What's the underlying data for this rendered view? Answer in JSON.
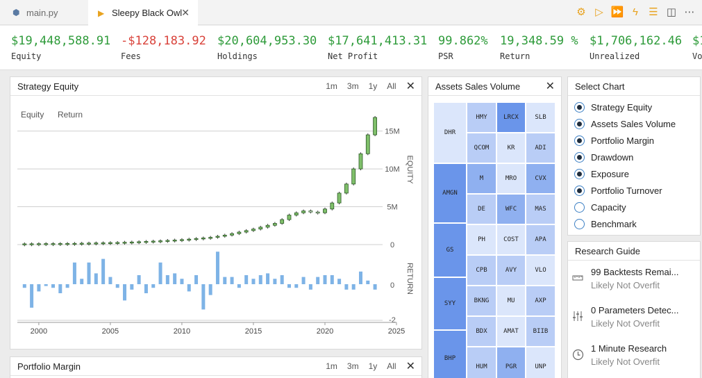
{
  "tabs": [
    {
      "label": "main.py",
      "icon": "python-file-icon"
    },
    {
      "label": "Sleepy Black Owl",
      "icon": "run-triangle-icon"
    }
  ],
  "toolbar": [
    "settings-icon",
    "run-icon",
    "fast-forward-icon",
    "lightning-icon",
    "list-icon",
    "split-view-icon",
    "more-icon"
  ],
  "stats": [
    {
      "value": "$19,448,588.91",
      "label": "Equity",
      "color": "#2e9b3a"
    },
    {
      "value": "-$128,183.92",
      "label": "Fees",
      "color": "#d9423a"
    },
    {
      "value": "$20,604,953.30",
      "label": "Holdings",
      "color": "#2e9b3a"
    },
    {
      "value": "$17,641,413.31",
      "label": "Net Profit",
      "color": "#2e9b3a"
    },
    {
      "value": "99.862%",
      "label": "PSR",
      "color": "#2e9b3a"
    },
    {
      "value": "19,348.59 %",
      "label": "Return",
      "color": "#2e9b3a"
    },
    {
      "value": "$1,706,162.46",
      "label": "Unrealized",
      "color": "#2e9b3a"
    },
    {
      "value": "$1",
      "label": "Vo",
      "color": "#2e9b3a"
    }
  ],
  "equity_panel": {
    "title": "Strategy Equity",
    "ranges": [
      "1m",
      "3m",
      "1y",
      "All"
    ],
    "legend": [
      "Equity",
      "Return"
    ]
  },
  "margin_panel": {
    "title": "Portfolio Margin",
    "ranges": [
      "1m",
      "3m",
      "1y",
      "All"
    ]
  },
  "assets_panel": {
    "title": "Assets Sales Volume"
  },
  "select_panel": {
    "title": "Select Chart",
    "options": [
      {
        "label": "Strategy Equity",
        "checked": true
      },
      {
        "label": "Assets Sales Volume",
        "checked": true
      },
      {
        "label": "Portfolio Margin",
        "checked": true
      },
      {
        "label": "Drawdown",
        "checked": true
      },
      {
        "label": "Exposure",
        "checked": true
      },
      {
        "label": "Portfolio Turnover",
        "checked": true
      },
      {
        "label": "Capacity",
        "checked": false
      },
      {
        "label": "Benchmark",
        "checked": false
      }
    ]
  },
  "guide_panel": {
    "title": "Research Guide",
    "items": [
      {
        "title": "99 Backtests Remai...",
        "sub": "Likely Not Overfit",
        "icon": "ruler-icon"
      },
      {
        "title": "0 Parameters Detec...",
        "sub": "Likely Not Overfit",
        "icon": "sliders-icon"
      },
      {
        "title": "1 Minute Research",
        "sub": "Likely Not Overfit",
        "icon": "clock-icon"
      }
    ]
  },
  "treemap": [
    {
      "label": "DHR",
      "shade": 1
    },
    {
      "label": "HMY",
      "shade": 2
    },
    {
      "label": "LRCX",
      "shade": 4
    },
    {
      "label": "SLB",
      "shade": 1
    },
    {
      "label": "QCOM",
      "shade": 2
    },
    {
      "label": "KR",
      "shade": 1
    },
    {
      "label": "ADI",
      "shade": 2
    },
    {
      "label": "AMGN",
      "shade": 4
    },
    {
      "label": "M",
      "shade": 3
    },
    {
      "label": "MRO",
      "shade": 1
    },
    {
      "label": "CVX",
      "shade": 3
    },
    {
      "label": "DE",
      "shade": 2
    },
    {
      "label": "WFC",
      "shade": 3
    },
    {
      "label": "MAS",
      "shade": 2
    },
    {
      "label": "GS",
      "shade": 4
    },
    {
      "label": "PH",
      "shade": 1
    },
    {
      "label": "COST",
      "shade": 1
    },
    {
      "label": "APA",
      "shade": 2
    },
    {
      "label": "CPB",
      "shade": 2
    },
    {
      "label": "AVY",
      "shade": 2
    },
    {
      "label": "VLO",
      "shade": 1
    },
    {
      "label": "SYY",
      "shade": 4
    },
    {
      "label": "BKNG",
      "shade": 2
    },
    {
      "label": "MU",
      "shade": 1
    },
    {
      "label": "AXP",
      "shade": 2
    },
    {
      "label": "BDX",
      "shade": 2
    },
    {
      "label": "AMAT",
      "shade": 1
    },
    {
      "label": "BIIB",
      "shade": 2
    },
    {
      "label": "BHP",
      "shade": 4
    },
    {
      "label": "HUM",
      "shade": 2
    },
    {
      "label": "PGR",
      "shade": 3
    },
    {
      "label": "UNP",
      "shade": 1
    }
  ],
  "chart_data": {
    "type": "bar",
    "title": "Strategy Equity",
    "x_ticks": [
      "2000",
      "2005",
      "2010",
      "2015",
      "2020",
      "2025"
    ],
    "xlim": [
      1998.5,
      2025
    ],
    "equity": {
      "name": "Equity",
      "ylabel": "EQUITY",
      "ticks": [
        "0",
        "5M",
        "10M",
        "15M"
      ],
      "ylim": [
        0,
        16800000
      ],
      "type": "candlestick",
      "points": [
        [
          1999.0,
          0.1
        ],
        [
          1999.5,
          0.11
        ],
        [
          2000.0,
          0.12
        ],
        [
          2000.5,
          0.13
        ],
        [
          2001.0,
          0.13
        ],
        [
          2001.5,
          0.14
        ],
        [
          2002.0,
          0.15
        ],
        [
          2002.5,
          0.16
        ],
        [
          2003.0,
          0.18
        ],
        [
          2003.5,
          0.2
        ],
        [
          2004.0,
          0.22
        ],
        [
          2004.5,
          0.24
        ],
        [
          2005.0,
          0.26
        ],
        [
          2005.5,
          0.28
        ],
        [
          2006.0,
          0.31
        ],
        [
          2006.5,
          0.34
        ],
        [
          2007.0,
          0.38
        ],
        [
          2007.5,
          0.42
        ],
        [
          2008.0,
          0.46
        ],
        [
          2008.5,
          0.5
        ],
        [
          2009.0,
          0.55
        ],
        [
          2009.5,
          0.6
        ],
        [
          2010.0,
          0.66
        ],
        [
          2010.5,
          0.72
        ],
        [
          2011.0,
          0.8
        ],
        [
          2011.5,
          0.88
        ],
        [
          2012.0,
          0.96
        ],
        [
          2012.5,
          1.1
        ],
        [
          2013.0,
          1.25
        ],
        [
          2013.5,
          1.45
        ],
        [
          2014.0,
          1.65
        ],
        [
          2014.5,
          1.85
        ],
        [
          2015.0,
          2.05
        ],
        [
          2015.5,
          2.3
        ],
        [
          2016.0,
          2.55
        ],
        [
          2016.5,
          2.8
        ],
        [
          2017.0,
          3.3
        ],
        [
          2017.5,
          3.9
        ],
        [
          2018.0,
          4.2
        ],
        [
          2018.5,
          4.45
        ],
        [
          2019.0,
          4.3
        ],
        [
          2019.5,
          4.2
        ],
        [
          2020.0,
          4.7
        ],
        [
          2020.5,
          5.5
        ],
        [
          2021.0,
          6.8
        ],
        [
          2021.5,
          8.0
        ],
        [
          2022.0,
          10.0
        ],
        [
          2022.5,
          12.0
        ],
        [
          2023.0,
          14.5
        ],
        [
          2023.5,
          16.8
        ]
      ]
    },
    "return": {
      "name": "Return",
      "ylabel": "RETURN",
      "ticks": [
        "0",
        "-2"
      ],
      "ylim": [
        -2,
        2
      ],
      "values": [
        -0.2,
        -1.3,
        -0.4,
        -0.1,
        -0.2,
        -0.5,
        -0.2,
        1.2,
        0.3,
        1.2,
        0.6,
        1.4,
        0.4,
        -0.2,
        -0.9,
        -0.3,
        0.5,
        -0.5,
        -0.2,
        1.2,
        0.5,
        0.6,
        0.3,
        -0.4,
        0.5,
        -1.4,
        -0.6,
        1.8,
        0.4,
        0.4,
        -0.2,
        0.5,
        0.3,
        0.5,
        0.6,
        0.3,
        0.5,
        -0.2,
        -0.2,
        0.4,
        -0.3,
        0.4,
        0.5,
        0.5,
        0.3,
        -0.3,
        -0.3,
        0.7,
        0.2,
        -0.3
      ]
    }
  }
}
